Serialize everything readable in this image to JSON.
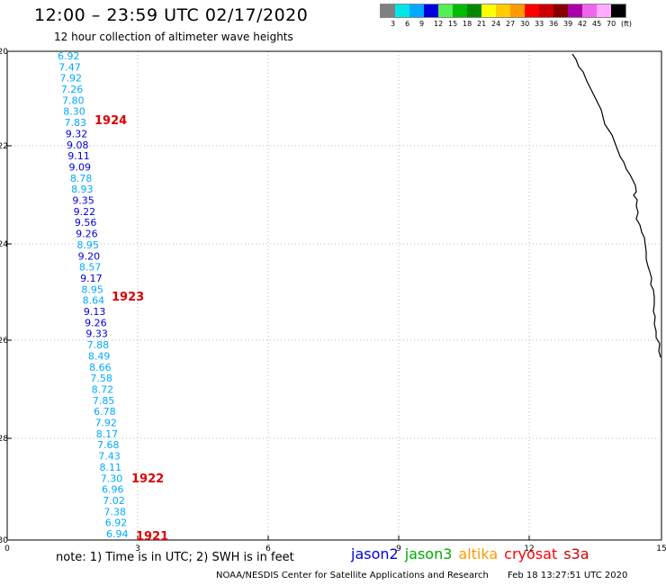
{
  "header": {
    "title": "12:00 – 23:59 UTC 02/17/2020",
    "subtitle": "12 hour collection of altimeter wave heights"
  },
  "color_legend": {
    "colors": [
      "#808080",
      "#00e5e5",
      "#00aaff",
      "#0000dd",
      "#55ee55",
      "#00bb00",
      "#008800",
      "#ffff00",
      "#ffcc00",
      "#ff9900",
      "#ff0000",
      "#cc0000",
      "#880000",
      "#aa00aa",
      "#ee66ee",
      "#ffaaff",
      "#000000"
    ],
    "labels": [
      "3",
      "6",
      "9",
      "12",
      "15",
      "18",
      "21",
      "24",
      "27",
      "30",
      "33",
      "36",
      "39",
      "42",
      "45",
      "70",
      "(ft)"
    ]
  },
  "map": {
    "lat_ticks": [
      "-20",
      "-22",
      "-24",
      "-26",
      "-28",
      "-30"
    ],
    "lon_ticks": [
      "0",
      "3",
      "6",
      "9",
      "12",
      "15"
    ],
    "coastline": "coastline",
    "observations": [
      {
        "v": "6.92",
        "c": "#00aaff"
      },
      {
        "v": "7.47",
        "c": "#00aaff"
      },
      {
        "v": "7.92",
        "c": "#00aaff"
      },
      {
        "v": "7.26",
        "c": "#00aaff"
      },
      {
        "v": "7.80",
        "c": "#00aaff"
      },
      {
        "v": "8.30",
        "c": "#00aaff"
      },
      {
        "v": "7.83",
        "c": "#00aaff"
      },
      {
        "v": "9.32",
        "c": "#0000dd"
      },
      {
        "v": "9.08",
        "c": "#0000dd"
      },
      {
        "v": "9.11",
        "c": "#0000dd"
      },
      {
        "v": "9.09",
        "c": "#0000dd"
      },
      {
        "v": "8.78",
        "c": "#00aaff"
      },
      {
        "v": "8.93",
        "c": "#00aaff"
      },
      {
        "v": "9.35",
        "c": "#0000dd"
      },
      {
        "v": "9.22",
        "c": "#0000dd"
      },
      {
        "v": "9.56",
        "c": "#0000dd"
      },
      {
        "v": "9.26",
        "c": "#0000dd"
      },
      {
        "v": "8.95",
        "c": "#00aaff"
      },
      {
        "v": "9.20",
        "c": "#0000dd"
      },
      {
        "v": "8.57",
        "c": "#00aaff"
      },
      {
        "v": "9.17",
        "c": "#0000dd"
      },
      {
        "v": "8.95",
        "c": "#00aaff"
      },
      {
        "v": "8.64",
        "c": "#00aaff"
      },
      {
        "v": "9.13",
        "c": "#0000dd"
      },
      {
        "v": "9.26",
        "c": "#0000dd"
      },
      {
        "v": "9.33",
        "c": "#0000dd"
      },
      {
        "v": "7.88",
        "c": "#00aaff"
      },
      {
        "v": "8.49",
        "c": "#00aaff"
      },
      {
        "v": "8.66",
        "c": "#00aaff"
      },
      {
        "v": "7.58",
        "c": "#00aaff"
      },
      {
        "v": "8.72",
        "c": "#00aaff"
      },
      {
        "v": "7.85",
        "c": "#00aaff"
      },
      {
        "v": "6.78",
        "c": "#00aaff"
      },
      {
        "v": "7.92",
        "c": "#00aaff"
      },
      {
        "v": "8.17",
        "c": "#00aaff"
      },
      {
        "v": "7.68",
        "c": "#00aaff"
      },
      {
        "v": "7.43",
        "c": "#00aaff"
      },
      {
        "v": "8.11",
        "c": "#00aaff"
      },
      {
        "v": "7.30",
        "c": "#00aaff"
      },
      {
        "v": "6.96",
        "c": "#00aaff"
      },
      {
        "v": "7.02",
        "c": "#00aaff"
      },
      {
        "v": "7.38",
        "c": "#00aaff"
      },
      {
        "v": "6.92",
        "c": "#00aaff"
      },
      {
        "v": "6.94",
        "c": "#00aaff"
      }
    ],
    "time_labels": [
      "1924",
      "1923",
      "1922",
      "1921"
    ]
  },
  "note": "note: 1) Time is in UTC; 2) SWH is in feet",
  "satellites": [
    {
      "name": "jason2",
      "color": "#0000dd"
    },
    {
      "name": "jason3",
      "color": "#00aa00"
    },
    {
      "name": "altika",
      "color": "#ff9900"
    },
    {
      "name": "cryosat",
      "color": "#ff0000"
    },
    {
      "name": "s3a",
      "color": "#cc0000"
    }
  ],
  "footer": {
    "credit": "NOAA/NESDIS Center for Satellite Applications and Research",
    "timestamp": "Feb 18 13:27:51 UTC 2020"
  }
}
